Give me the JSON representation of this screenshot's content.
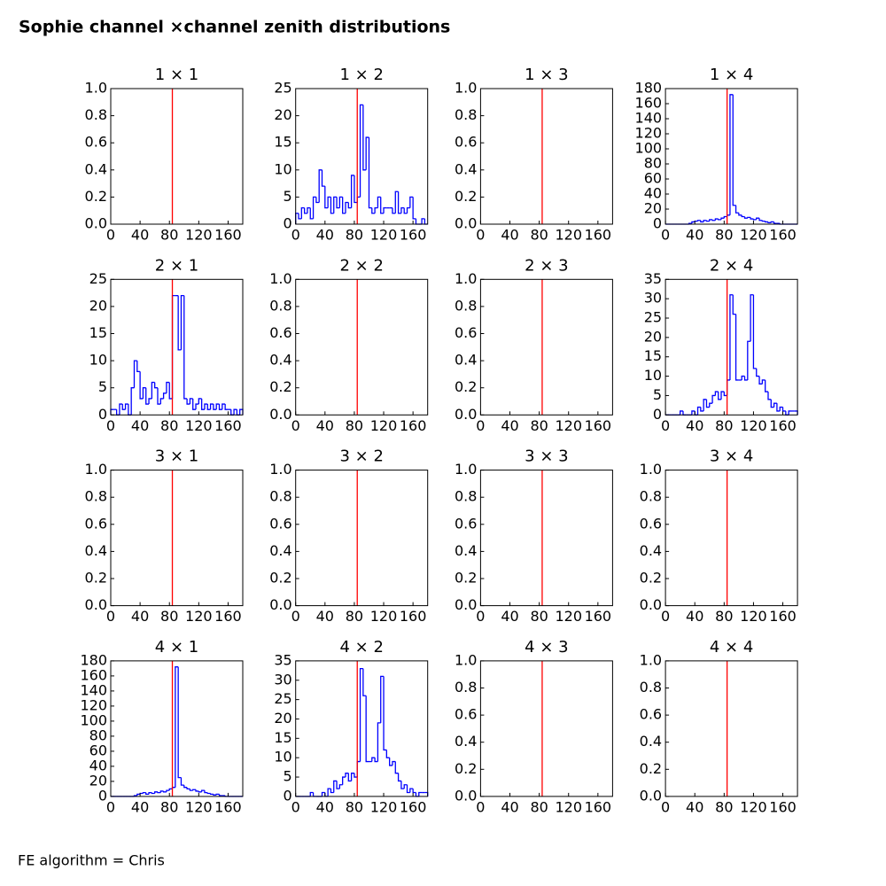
{
  "title": "Sophie channel ×channel zenith distributions",
  "footer": "FE algorithm = Chris",
  "chart_data": [
    {
      "type": "histogram",
      "title": "1 × 1",
      "xlim": [
        0,
        180
      ],
      "xticks": [
        0,
        40,
        80,
        120,
        160
      ],
      "ylim": [
        0,
        1
      ],
      "yticks": [
        {
          "value": 0,
          "label": "0.0"
        },
        {
          "value": 0.2,
          "label": "0.2"
        },
        {
          "value": 0.4,
          "label": "0.4"
        },
        {
          "value": 0.6,
          "label": "0.6"
        },
        {
          "value": 0.8,
          "label": "0.8"
        },
        {
          "value": 1,
          "label": "1.0"
        }
      ],
      "vline": 84,
      "vline_color": "#ff0000"
    },
    {
      "type": "histogram",
      "title": "1 × 2",
      "xlim": [
        0,
        180
      ],
      "xticks": [
        0,
        40,
        80,
        120,
        160
      ],
      "ylim": [
        0,
        25
      ],
      "yticks": [
        0,
        5,
        10,
        15,
        20,
        25
      ],
      "vline": 84,
      "vline_color": "#ff0000",
      "color": "#0000ff",
      "bins": [
        0,
        4,
        8,
        12,
        16,
        20,
        24,
        28,
        32,
        36,
        40,
        44,
        48,
        52,
        56,
        60,
        64,
        68,
        72,
        76,
        80,
        84,
        88,
        92,
        96,
        100,
        104,
        108,
        112,
        116,
        120,
        124,
        128,
        132,
        136,
        140,
        144,
        148,
        152,
        156,
        160,
        164,
        168,
        172,
        176,
        180
      ],
      "values": [
        2,
        1,
        3,
        2,
        3,
        1,
        5,
        4,
        10,
        7,
        3,
        5,
        2,
        5,
        3,
        5,
        2,
        4,
        3,
        9,
        4,
        5,
        22,
        10,
        16,
        3,
        2,
        3,
        5,
        2,
        3,
        3,
        3,
        2,
        6,
        2,
        3,
        2,
        3,
        5,
        1,
        0,
        0,
        1,
        0
      ]
    },
    {
      "type": "histogram",
      "title": "1 × 3",
      "xlim": [
        0,
        180
      ],
      "xticks": [
        0,
        40,
        80,
        120,
        160
      ],
      "ylim": [
        0,
        1
      ],
      "yticks": [
        {
          "value": 0,
          "label": "0.0"
        },
        {
          "value": 0.2,
          "label": "0.2"
        },
        {
          "value": 0.4,
          "label": "0.4"
        },
        {
          "value": 0.6,
          "label": "0.6"
        },
        {
          "value": 0.8,
          "label": "0.8"
        },
        {
          "value": 1,
          "label": "1.0"
        }
      ],
      "vline": 84,
      "vline_color": "#ff0000"
    },
    {
      "type": "histogram",
      "title": "1 × 4",
      "xlim": [
        0,
        180
      ],
      "xticks": [
        0,
        40,
        80,
        120,
        160
      ],
      "ylim": [
        0,
        180
      ],
      "yticks": [
        0,
        20,
        40,
        60,
        80,
        100,
        120,
        140,
        160,
        180
      ],
      "vline": 84,
      "vline_color": "#ff0000",
      "color": "#0000ff",
      "bins": [
        0,
        4,
        8,
        12,
        16,
        20,
        24,
        28,
        32,
        36,
        40,
        44,
        48,
        52,
        56,
        60,
        64,
        68,
        72,
        76,
        80,
        84,
        88,
        92,
        96,
        100,
        104,
        108,
        112,
        116,
        120,
        124,
        128,
        132,
        136,
        140,
        144,
        148,
        152,
        156,
        160,
        164,
        168,
        172,
        176,
        180
      ],
      "values": [
        0,
        0,
        0,
        0,
        0,
        0,
        0,
        0,
        1,
        3,
        4,
        5,
        3,
        5,
        4,
        6,
        5,
        7,
        6,
        8,
        10,
        12,
        172,
        25,
        15,
        12,
        10,
        8,
        9,
        7,
        6,
        8,
        5,
        4,
        3,
        2,
        3,
        1,
        1,
        0,
        0,
        0,
        0,
        0,
        0
      ]
    },
    {
      "type": "histogram",
      "title": "2 × 1",
      "xlim": [
        0,
        180
      ],
      "xticks": [
        0,
        40,
        80,
        120,
        160
      ],
      "ylim": [
        0,
        25
      ],
      "yticks": [
        0,
        5,
        10,
        15,
        20,
        25
      ],
      "vline": 84,
      "vline_color": "#ff0000",
      "color": "#0000ff",
      "bins": [
        0,
        4,
        8,
        12,
        16,
        20,
        24,
        28,
        32,
        36,
        40,
        44,
        48,
        52,
        56,
        60,
        64,
        68,
        72,
        76,
        80,
        84,
        88,
        92,
        96,
        100,
        104,
        108,
        112,
        116,
        120,
        124,
        128,
        132,
        136,
        140,
        144,
        148,
        152,
        156,
        160,
        164,
        168,
        172,
        176,
        180
      ],
      "values": [
        1,
        1,
        0,
        2,
        1,
        2,
        0,
        5,
        10,
        8,
        3,
        5,
        2,
        3,
        6,
        5,
        2,
        3,
        4,
        6,
        3,
        22,
        22,
        12,
        22,
        3,
        2,
        3,
        1,
        2,
        3,
        1,
        2,
        1,
        2,
        1,
        2,
        1,
        2,
        1,
        1,
        0,
        1,
        0,
        1
      ]
    },
    {
      "type": "histogram",
      "title": "2 × 2",
      "xlim": [
        0,
        180
      ],
      "xticks": [
        0,
        40,
        80,
        120,
        160
      ],
      "ylim": [
        0,
        1
      ],
      "yticks": [
        {
          "value": 0,
          "label": "0.0"
        },
        {
          "value": 0.2,
          "label": "0.2"
        },
        {
          "value": 0.4,
          "label": "0.4"
        },
        {
          "value": 0.6,
          "label": "0.6"
        },
        {
          "value": 0.8,
          "label": "0.8"
        },
        {
          "value": 1,
          "label": "1.0"
        }
      ],
      "vline": 84,
      "vline_color": "#ff0000"
    },
    {
      "type": "histogram",
      "title": "2 × 3",
      "xlim": [
        0,
        180
      ],
      "xticks": [
        0,
        40,
        80,
        120,
        160
      ],
      "ylim": [
        0,
        1
      ],
      "yticks": [
        {
          "value": 0,
          "label": "0.0"
        },
        {
          "value": 0.2,
          "label": "0.2"
        },
        {
          "value": 0.4,
          "label": "0.4"
        },
        {
          "value": 0.6,
          "label": "0.6"
        },
        {
          "value": 0.8,
          "label": "0.8"
        },
        {
          "value": 1,
          "label": "1.0"
        }
      ],
      "vline": 84,
      "vline_color": "#ff0000"
    },
    {
      "type": "histogram",
      "title": "2 × 4",
      "xlim": [
        0,
        180
      ],
      "xticks": [
        0,
        40,
        80,
        120,
        160
      ],
      "ylim": [
        0,
        35
      ],
      "yticks": [
        0,
        5,
        10,
        15,
        20,
        25,
        30,
        35
      ],
      "vline": 84,
      "vline_color": "#ff0000",
      "color": "#0000ff",
      "bins": [
        0,
        4,
        8,
        12,
        16,
        20,
        24,
        28,
        32,
        36,
        40,
        44,
        48,
        52,
        56,
        60,
        64,
        68,
        72,
        76,
        80,
        84,
        88,
        92,
        96,
        100,
        104,
        108,
        112,
        116,
        120,
        124,
        128,
        132,
        136,
        140,
        144,
        148,
        152,
        156,
        160,
        164,
        168,
        172,
        176,
        180
      ],
      "values": [
        0,
        0,
        0,
        0,
        0,
        1,
        0,
        0,
        0,
        1,
        0,
        2,
        1,
        4,
        2,
        3,
        5,
        6,
        4,
        6,
        5,
        9,
        31,
        26,
        9,
        9,
        10,
        9,
        19,
        31,
        12,
        10,
        8,
        9,
        6,
        4,
        2,
        3,
        1,
        2,
        1,
        0,
        1,
        1,
        1
      ]
    },
    {
      "type": "histogram",
      "title": "3 × 1",
      "xlim": [
        0,
        180
      ],
      "xticks": [
        0,
        40,
        80,
        120,
        160
      ],
      "ylim": [
        0,
        1
      ],
      "yticks": [
        {
          "value": 0,
          "label": "0.0"
        },
        {
          "value": 0.2,
          "label": "0.2"
        },
        {
          "value": 0.4,
          "label": "0.4"
        },
        {
          "value": 0.6,
          "label": "0.6"
        },
        {
          "value": 0.8,
          "label": "0.8"
        },
        {
          "value": 1,
          "label": "1.0"
        }
      ],
      "vline": 84,
      "vline_color": "#ff0000"
    },
    {
      "type": "histogram",
      "title": "3 × 2",
      "xlim": [
        0,
        180
      ],
      "xticks": [
        0,
        40,
        80,
        120,
        160
      ],
      "ylim": [
        0,
        1
      ],
      "yticks": [
        {
          "value": 0,
          "label": "0.0"
        },
        {
          "value": 0.2,
          "label": "0.2"
        },
        {
          "value": 0.4,
          "label": "0.4"
        },
        {
          "value": 0.6,
          "label": "0.6"
        },
        {
          "value": 0.8,
          "label": "0.8"
        },
        {
          "value": 1,
          "label": "1.0"
        }
      ],
      "vline": 84,
      "vline_color": "#ff0000"
    },
    {
      "type": "histogram",
      "title": "3 × 3",
      "xlim": [
        0,
        180
      ],
      "xticks": [
        0,
        40,
        80,
        120,
        160
      ],
      "ylim": [
        0,
        1
      ],
      "yticks": [
        {
          "value": 0,
          "label": "0.0"
        },
        {
          "value": 0.2,
          "label": "0.2"
        },
        {
          "value": 0.4,
          "label": "0.4"
        },
        {
          "value": 0.6,
          "label": "0.6"
        },
        {
          "value": 0.8,
          "label": "0.8"
        },
        {
          "value": 1,
          "label": "1.0"
        }
      ],
      "vline": 84,
      "vline_color": "#ff0000"
    },
    {
      "type": "histogram",
      "title": "3 × 4",
      "xlim": [
        0,
        180
      ],
      "xticks": [
        0,
        40,
        80,
        120,
        160
      ],
      "ylim": [
        0,
        1
      ],
      "yticks": [
        {
          "value": 0,
          "label": "0.0"
        },
        {
          "value": 0.2,
          "label": "0.2"
        },
        {
          "value": 0.4,
          "label": "0.4"
        },
        {
          "value": 0.6,
          "label": "0.6"
        },
        {
          "value": 0.8,
          "label": "0.8"
        },
        {
          "value": 1,
          "label": "1.0"
        }
      ],
      "vline": 84,
      "vline_color": "#ff0000"
    },
    {
      "type": "histogram",
      "title": "4 × 1",
      "xlim": [
        0,
        180
      ],
      "xticks": [
        0,
        40,
        80,
        120,
        160
      ],
      "ylim": [
        0,
        180
      ],
      "yticks": [
        0,
        20,
        40,
        60,
        80,
        100,
        120,
        140,
        160,
        180
      ],
      "vline": 84,
      "vline_color": "#ff0000",
      "color": "#0000ff",
      "bins": [
        0,
        4,
        8,
        12,
        16,
        20,
        24,
        28,
        32,
        36,
        40,
        44,
        48,
        52,
        56,
        60,
        64,
        68,
        72,
        76,
        80,
        84,
        88,
        92,
        96,
        100,
        104,
        108,
        112,
        116,
        120,
        124,
        128,
        132,
        136,
        140,
        144,
        148,
        152,
        156,
        160,
        164,
        168,
        172,
        176,
        180
      ],
      "values": [
        0,
        0,
        0,
        0,
        0,
        0,
        0,
        0,
        1,
        3,
        4,
        5,
        3,
        5,
        4,
        6,
        5,
        7,
        6,
        8,
        10,
        12,
        172,
        25,
        15,
        12,
        10,
        8,
        9,
        7,
        6,
        8,
        5,
        4,
        3,
        2,
        3,
        1,
        1,
        0,
        0,
        0,
        0,
        0,
        0
      ]
    },
    {
      "type": "histogram",
      "title": "4 × 2",
      "xlim": [
        0,
        180
      ],
      "xticks": [
        0,
        40,
        80,
        120,
        160
      ],
      "ylim": [
        0,
        35
      ],
      "yticks": [
        0,
        5,
        10,
        15,
        20,
        25,
        30,
        35
      ],
      "vline": 84,
      "vline_color": "#ff0000",
      "color": "#0000ff",
      "bins": [
        0,
        4,
        8,
        12,
        16,
        20,
        24,
        28,
        32,
        36,
        40,
        44,
        48,
        52,
        56,
        60,
        64,
        68,
        72,
        76,
        80,
        84,
        88,
        92,
        96,
        100,
        104,
        108,
        112,
        116,
        120,
        124,
        128,
        132,
        136,
        140,
        144,
        148,
        152,
        156,
        160,
        164,
        168,
        172,
        176,
        180
      ],
      "values": [
        0,
        0,
        0,
        0,
        0,
        1,
        0,
        0,
        0,
        1,
        0,
        2,
        1,
        4,
        2,
        3,
        5,
        6,
        4,
        6,
        5,
        9,
        33,
        26,
        9,
        9,
        10,
        9,
        19,
        31,
        12,
        10,
        8,
        9,
        6,
        4,
        2,
        3,
        1,
        2,
        1,
        0,
        1,
        1,
        1
      ]
    },
    {
      "type": "histogram",
      "title": "4 × 3",
      "xlim": [
        0,
        180
      ],
      "xticks": [
        0,
        40,
        80,
        120,
        160
      ],
      "ylim": [
        0,
        1
      ],
      "yticks": [
        {
          "value": 0,
          "label": "0.0"
        },
        {
          "value": 0.2,
          "label": "0.2"
        },
        {
          "value": 0.4,
          "label": "0.4"
        },
        {
          "value": 0.6,
          "label": "0.6"
        },
        {
          "value": 0.8,
          "label": "0.8"
        },
        {
          "value": 1,
          "label": "1.0"
        }
      ],
      "vline": 84,
      "vline_color": "#ff0000"
    },
    {
      "type": "histogram",
      "title": "4 × 4",
      "xlim": [
        0,
        180
      ],
      "xticks": [
        0,
        40,
        80,
        120,
        160
      ],
      "ylim": [
        0,
        1
      ],
      "yticks": [
        {
          "value": 0,
          "label": "0.0"
        },
        {
          "value": 0.2,
          "label": "0.2"
        },
        {
          "value": 0.4,
          "label": "0.4"
        },
        {
          "value": 0.6,
          "label": "0.6"
        },
        {
          "value": 0.8,
          "label": "0.8"
        },
        {
          "value": 1,
          "label": "1.0"
        }
      ],
      "vline": 84,
      "vline_color": "#ff0000"
    }
  ]
}
